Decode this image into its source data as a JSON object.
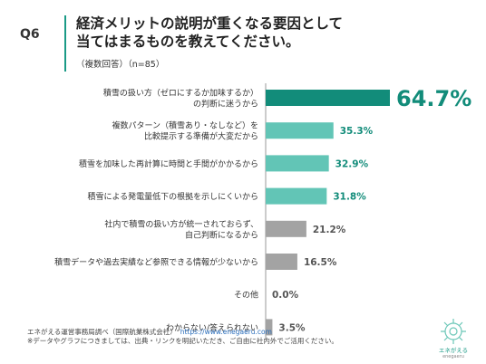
{
  "question": {
    "number": "Q6",
    "title": "経済メリットの説明が重くなる要因として\n当てはまるものを教えてください。",
    "subtitle": "（複数回答）（n=85）"
  },
  "chart_data": {
    "type": "bar",
    "orientation": "horizontal",
    "categories": [
      "積雪の扱い方（ゼロにするか加味するか）\nの判断に迷うから",
      "複数パターン（積雪あり・なしなど）を\n比較提示する準備が大変だから",
      "積雪を加味した再計算に時間と手間がかかるから",
      "積雪による発電量低下の根拠を示しにくいから",
      "社内で積雪の扱い方が統一されておらず、\n自己判断になるから",
      "積雪データや過去実績など参照できる情報が少ないから",
      "その他",
      "わからない/答えられない"
    ],
    "values": [
      64.7,
      35.3,
      32.9,
      31.8,
      21.2,
      16.5,
      0.0,
      3.5
    ],
    "labels": [
      "64.7%",
      "35.3%",
      "32.9%",
      "31.8%",
      "21.2%",
      "16.5%",
      "0.0%",
      "3.5%"
    ],
    "unit": "%",
    "xlim": [
      0,
      64.7
    ],
    "colors": {
      "top": "#128c7a",
      "teal": "#62c5b6",
      "gray": "#a3a3a3",
      "label_teal": "#128c7a",
      "label_gray": "#555555",
      "axis": "#999999"
    },
    "bar_color_groups": [
      "top",
      "teal",
      "teal",
      "teal",
      "gray",
      "gray",
      "gray",
      "gray"
    ]
  },
  "footer": {
    "source": "エネがえる運営事務局調べ（国際航業株式会社）",
    "url": "https://www.enegaeru.com",
    "note": "※データやグラフにつきましては、出典・リンクを明記いただき、ご自由に社内外でご活用ください。",
    "logo_text": "エネがえる",
    "logo_subtext": "enegaeru"
  }
}
